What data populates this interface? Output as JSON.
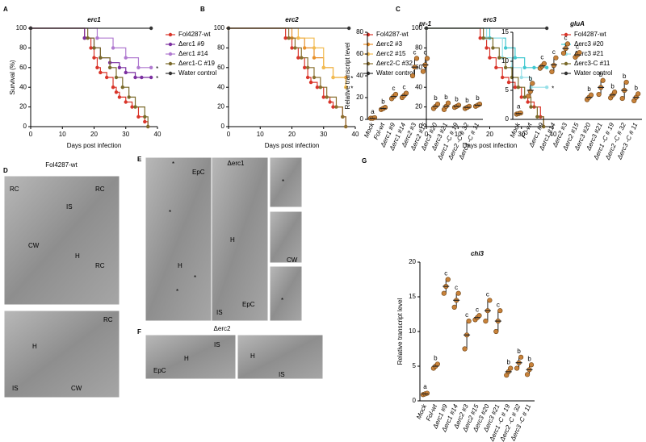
{
  "panel_letters": [
    "A",
    "B",
    "C",
    "D",
    "E",
    "F",
    "G"
  ],
  "chart_data": [
    {
      "type": "line",
      "title": "erc1",
      "xlabel": "Days post infection",
      "ylabel": "Survival (%)",
      "xlim": [
        0,
        40
      ],
      "xticks": [
        0,
        10,
        20,
        30,
        40
      ],
      "ylim": [
        0,
        100
      ],
      "yticks": [
        0,
        20,
        40,
        60,
        80,
        100
      ],
      "series": [
        {
          "name": "Fol4287-wt",
          "color": "#d9352a",
          "x": [
            0,
            17,
            19,
            20,
            21,
            22,
            24,
            26,
            27,
            28,
            30,
            32,
            34,
            36,
            37
          ],
          "values": [
            100,
            90,
            80,
            70,
            60,
            55,
            50,
            40,
            35,
            30,
            25,
            20,
            10,
            5,
            0
          ]
        },
        {
          "name": "Δerc1 #9",
          "color": "#7b2fa0",
          "x": [
            0,
            17,
            20,
            22,
            25,
            28,
            30,
            33,
            35,
            38
          ],
          "values": [
            100,
            90,
            80,
            70,
            65,
            60,
            55,
            50,
            50,
            50
          ],
          "significance": "*"
        },
        {
          "name": "Δerc1 #14",
          "color": "#b07ad0",
          "x": [
            0,
            21,
            26,
            30,
            34,
            38
          ],
          "values": [
            100,
            90,
            80,
            70,
            60,
            60
          ],
          "significance": "*"
        },
        {
          "name": "Δerc1-C #19",
          "color": "#7a6a2a",
          "x": [
            0,
            18,
            20,
            22,
            25,
            27,
            29,
            31,
            33,
            36,
            37
          ],
          "values": [
            100,
            90,
            80,
            70,
            60,
            50,
            40,
            30,
            20,
            10,
            0
          ]
        },
        {
          "name": "Water control",
          "color": "#333333",
          "x": [
            0,
            38
          ],
          "values": [
            100,
            100
          ]
        }
      ]
    },
    {
      "type": "line",
      "title": "erc2",
      "xlabel": "Days post infection",
      "xlim": [
        0,
        40
      ],
      "xticks": [
        0,
        10,
        20,
        30,
        40
      ],
      "ylim": [
        0,
        100
      ],
      "yticks": [
        0,
        20,
        40,
        60,
        80,
        100
      ],
      "series": [
        {
          "name": "Fol4287-wt",
          "color": "#d9352a",
          "x": [
            0,
            18,
            20,
            22,
            24,
            25,
            26,
            28,
            30,
            32,
            33,
            36,
            37
          ],
          "values": [
            100,
            90,
            80,
            70,
            60,
            50,
            45,
            40,
            30,
            25,
            20,
            10,
            0
          ]
        },
        {
          "name": "Δerc2 #3",
          "color": "#e8902a",
          "x": [
            0,
            20,
            24,
            27,
            30,
            33,
            37
          ],
          "values": [
            100,
            90,
            80,
            70,
            60,
            50,
            50
          ],
          "significance": "*"
        },
        {
          "name": "Δerc2 #15",
          "color": "#f2bb50",
          "x": [
            0,
            22,
            27,
            30,
            33,
            37
          ],
          "values": [
            100,
            90,
            80,
            60,
            50,
            40
          ],
          "significance": "*"
        },
        {
          "name": "Δerc2-C #32",
          "color": "#8a7030",
          "x": [
            0,
            19,
            21,
            23,
            25,
            27,
            29,
            31,
            34,
            36,
            37
          ],
          "values": [
            100,
            90,
            80,
            70,
            60,
            50,
            40,
            30,
            20,
            10,
            0
          ]
        },
        {
          "name": "Water control",
          "color": "#333333",
          "x": [
            0,
            38
          ],
          "values": [
            100,
            100
          ]
        }
      ]
    },
    {
      "type": "line",
      "title": "erc3",
      "xlabel": "Days post infection",
      "xlim": [
        0,
        40
      ],
      "xticks": [
        0,
        10,
        20,
        30,
        40
      ],
      "ylim": [
        0,
        100
      ],
      "yticks": [
        0,
        20,
        40,
        60,
        80,
        100
      ],
      "series": [
        {
          "name": "Fol4287-wt",
          "color": "#d9352a",
          "x": [
            0,
            17,
            19,
            20,
            22,
            24,
            26,
            28,
            30,
            32,
            34,
            36,
            37
          ],
          "values": [
            100,
            90,
            80,
            70,
            60,
            50,
            45,
            40,
            30,
            25,
            20,
            10,
            0
          ]
        },
        {
          "name": "Δerc3 #20",
          "color": "#40c8d0",
          "x": [
            0,
            20,
            25,
            28,
            31,
            34,
            38
          ],
          "values": [
            100,
            90,
            80,
            70,
            60,
            60,
            60
          ],
          "significance": "*"
        },
        {
          "name": "Δerc3 #21",
          "color": "#98e0e8",
          "x": [
            0,
            19,
            24,
            27,
            30,
            33,
            38
          ],
          "values": [
            100,
            90,
            70,
            60,
            50,
            40,
            40
          ],
          "significance": "*"
        },
        {
          "name": "Δerc3-C #11",
          "color": "#7a6a2a",
          "x": [
            0,
            18,
            21,
            23,
            25,
            27,
            29,
            31,
            33,
            35,
            37
          ],
          "values": [
            100,
            90,
            80,
            70,
            60,
            50,
            40,
            30,
            20,
            10,
            0
          ]
        },
        {
          "name": "Water control",
          "color": "#333333",
          "x": [
            0,
            38
          ],
          "values": [
            100,
            100
          ]
        }
      ]
    },
    {
      "type": "dot",
      "title": "pr-1",
      "ylabel": "Relative transcript level",
      "ylim": [
        0,
        80
      ],
      "yticks": [
        0,
        20,
        40,
        60,
        80
      ],
      "categories": [
        "Mock",
        "Fol-wt",
        "Δerc1 #9",
        "Δerc1 #14",
        "Δerc2 #3",
        "Δerc2 #15",
        "Δerc3 #20",
        "Δerc3 #21",
        "Δerc1 -C # 19",
        "Δerc2 -C # 32",
        "Δerc3 -C # 11"
      ],
      "values": [
        1,
        10,
        21,
        22,
        48,
        50,
        12,
        12,
        12,
        11,
        13
      ],
      "errors": [
        0.5,
        1,
        2,
        2,
        8,
        6,
        2,
        3,
        1,
        1,
        1
      ],
      "points": [
        [
          1,
          1,
          1.5
        ],
        [
          9,
          10,
          11
        ],
        [
          19,
          21,
          23
        ],
        [
          20,
          22,
          24
        ],
        [
          40,
          48,
          56
        ],
        [
          44,
          50,
          56
        ],
        [
          10,
          12,
          14
        ],
        [
          9,
          12,
          15
        ],
        [
          11,
          12,
          13
        ],
        [
          10,
          11,
          12
        ],
        [
          12,
          13,
          14
        ]
      ],
      "letters": [
        "a",
        "b",
        "c",
        "c",
        "c",
        "c",
        "b",
        "b",
        "b",
        "b",
        "b"
      ]
    },
    {
      "type": "dot",
      "title": "gluA",
      "ylim": [
        0,
        15
      ],
      "yticks": [
        0,
        5,
        10,
        15
      ],
      "categories": [
        "Mock",
        "F0-wt",
        "Δerc1 #9",
        "Δerc1 #14",
        "Δerc2 #3",
        "Δerc2 #15",
        "Δerc3 #20",
        "Δerc3 #21",
        "Δerc1 -C # 19",
        "Δerc2 -C # 32",
        "Δerc3 -C # 11"
      ],
      "values": [
        1,
        5,
        9.2,
        9.4,
        12.2,
        11.1,
        3.8,
        5.5,
        4.2,
        5,
        3.8
      ],
      "errors": [
        0.2,
        1,
        0.5,
        1.2,
        0.8,
        0.4,
        0.4,
        1.2,
        0.5,
        1.4,
        0.6
      ],
      "points": [
        [
          0.9,
          1,
          1.1
        ],
        [
          4,
          4.8,
          6.2
        ],
        [
          8.8,
          9.2,
          9.6
        ],
        [
          8.2,
          9.3,
          10.6
        ],
        [
          11.4,
          12.2,
          13
        ],
        [
          10.7,
          11.1,
          11.5
        ],
        [
          3.4,
          3.8,
          4.2
        ],
        [
          4.3,
          5.5,
          6.7
        ],
        [
          3.7,
          4.2,
          4.7
        ],
        [
          3.6,
          5,
          6.4
        ],
        [
          3.2,
          3.8,
          4.4
        ]
      ],
      "letters": [
        "a",
        "b",
        "c",
        "c",
        "c",
        "c",
        "b",
        "b",
        "b",
        "b",
        "b"
      ]
    },
    {
      "type": "dot",
      "title": "chi3",
      "ylabel": "Relative transcript level",
      "ylim": [
        0,
        20
      ],
      "yticks": [
        0,
        5,
        10,
        15,
        20
      ],
      "categories": [
        "Mock",
        "Fol-wt",
        "Δerc1 #9",
        "Δerc1 #14",
        "Δerc2 #3",
        "Δerc2 #15",
        "Δerc3 #20",
        "Δerc3 #21",
        "Δerc1 -C # 19",
        "Δerc2 -C # 32",
        "Δerc3 -C # 11"
      ],
      "values": [
        1,
        5,
        16.5,
        14.5,
        9.5,
        12,
        13,
        11.5,
        4.2,
        5.5,
        4.5
      ],
      "errors": [
        0.2,
        0.3,
        1,
        1,
        2,
        0.3,
        1.5,
        1.5,
        0.5,
        0.8,
        0.7
      ],
      "points": [
        [
          0.9,
          1,
          1.1
        ],
        [
          4.7,
          5,
          5.3
        ],
        [
          15.5,
          16.5,
          17.5
        ],
        [
          13.5,
          14.5,
          15.5
        ],
        [
          7.5,
          9.5,
          11.5
        ],
        [
          11.7,
          12,
          12.3
        ],
        [
          11.5,
          13,
          14.5
        ],
        [
          10,
          11.5,
          13
        ],
        [
          3.7,
          4.2,
          4.7
        ],
        [
          4.7,
          5.5,
          6.3
        ],
        [
          3.8,
          4.5,
          5.2
        ]
      ],
      "letters": [
        "a",
        "b",
        "c",
        "c",
        "c",
        "c",
        "c",
        "c",
        "b",
        "b",
        "b"
      ]
    }
  ],
  "micrographs": [
    {
      "title": "Fol4287-wt",
      "labels": [
        "RC",
        "IS",
        "RC",
        "CW",
        "H",
        "RC",
        "RC",
        "H",
        "IS",
        "CW"
      ]
    },
    {
      "title": "Δerc1",
      "labels": [
        "EpC",
        "*",
        "*",
        "H",
        "*",
        "*",
        "H",
        "IS",
        "EpC",
        "*",
        "CW",
        "*"
      ]
    },
    {
      "title": "Δerc2",
      "labels": [
        "IS",
        "EpC",
        "H",
        "H",
        "IS"
      ]
    }
  ]
}
